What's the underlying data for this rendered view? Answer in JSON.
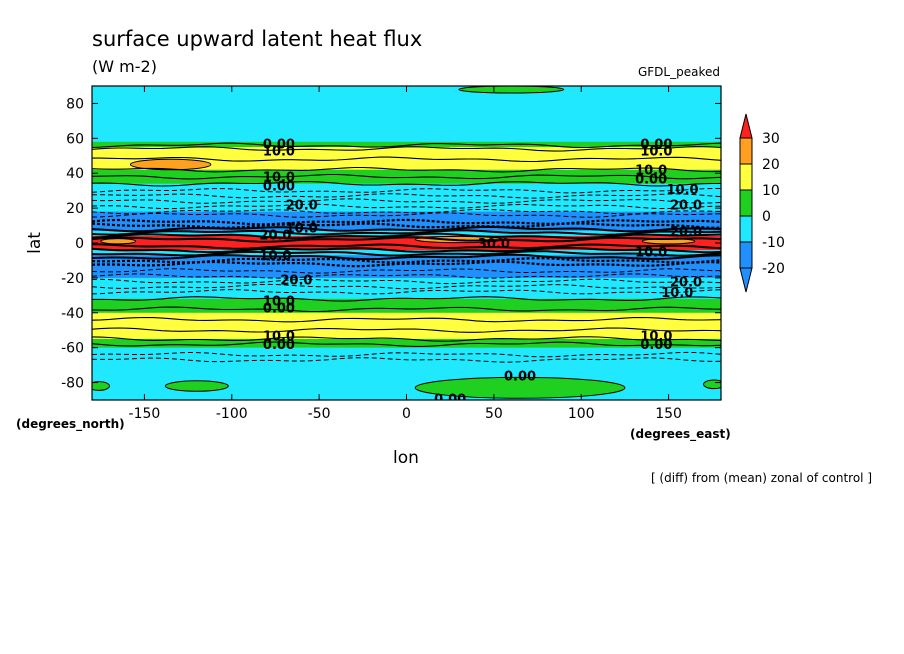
{
  "chart_data": {
    "type": "heatmap",
    "title": "surface upward latent heat flux",
    "units": "(W m-2)",
    "model_label": "GFDL_peaked",
    "xlabel": "lon",
    "ylabel": "lat",
    "x_units_label": "(degrees_east)",
    "y_units_label": "(degrees_north)",
    "footnote": "[ (diff) from (mean) zonal of control ]",
    "xlim": [
      -180,
      180
    ],
    "ylim": [
      -90,
      90
    ],
    "x_ticks": [
      -150,
      -100,
      -50,
      0,
      50,
      100,
      150
    ],
    "y_ticks": [
      80,
      60,
      40,
      20,
      0,
      -20,
      -40,
      -60,
      -80
    ],
    "x_tick_labels": [
      "-150",
      "-100",
      "-50",
      "0",
      "50",
      "100",
      "150"
    ],
    "y_tick_labels": [
      "80",
      "60",
      "40",
      "20",
      "0",
      "-20",
      "-40",
      "-60",
      "-80"
    ],
    "colorbar": {
      "levels": [
        30,
        20,
        10,
        0,
        -10,
        -20
      ],
      "level_labels": [
        "30",
        "20",
        "10",
        "0",
        "-10",
        "-20"
      ],
      "colors": [
        "#ff2020",
        "#ffa020",
        "#ffff40",
        "#20d020",
        "#20e8ff",
        "#2090ff"
      ],
      "top_color": "#ff2020",
      "bottom_color": "#2090ff"
    },
    "bands": [
      {
        "lat_min": 72,
        "lat_max": 90,
        "color": "#20e8ff"
      },
      {
        "lat_min": 58,
        "lat_max": 72,
        "color": "#20e8ff"
      },
      {
        "lat_min": 55,
        "lat_max": 58,
        "color": "#20d020"
      },
      {
        "lat_min": 42,
        "lat_max": 55,
        "color": "#ffff40"
      },
      {
        "lat_min": 34,
        "lat_max": 42,
        "color": "#20d020"
      },
      {
        "lat_min": 18,
        "lat_max": 34,
        "color": "#20e8ff"
      },
      {
        "lat_min": 7,
        "lat_max": 18,
        "color": "#2090ff"
      },
      {
        "lat_min": 4,
        "lat_max": 7,
        "color": "#20e8ff"
      },
      {
        "lat_min": -4,
        "lat_max": 4,
        "color": "#ff2020"
      },
      {
        "lat_min": -7,
        "lat_max": -4,
        "color": "#20e8ff"
      },
      {
        "lat_min": -20,
        "lat_max": -7,
        "color": "#2090ff"
      },
      {
        "lat_min": -32,
        "lat_max": -20,
        "color": "#20e8ff"
      },
      {
        "lat_min": -40,
        "lat_max": -32,
        "color": "#20d020"
      },
      {
        "lat_min": -55,
        "lat_max": -40,
        "color": "#ffff40"
      },
      {
        "lat_min": -60,
        "lat_max": -55,
        "color": "#20d020"
      },
      {
        "lat_min": -90,
        "lat_max": -60,
        "color": "#20e8ff"
      }
    ],
    "patches": [
      {
        "lon": -135,
        "lat": 45,
        "rx": 23,
        "ry": 3,
        "color": "#ffa020"
      },
      {
        "lon": -120,
        "lat": -82,
        "rx": 18,
        "ry": 3,
        "color": "#20d020"
      },
      {
        "lon": 65,
        "lat": -83,
        "rx": 60,
        "ry": 6,
        "color": "#20d020"
      },
      {
        "lon": -176,
        "lat": -82,
        "rx": 6,
        "ry": 2.5,
        "color": "#20d020"
      },
      {
        "lon": 176,
        "lat": -81,
        "rx": 6,
        "ry": 2.5,
        "color": "#20d020"
      },
      {
        "lon": 60,
        "lat": 88,
        "rx": 30,
        "ry": 2,
        "color": "#20d020"
      },
      {
        "lon": 30,
        "lat": 2,
        "rx": 25,
        "ry": 1.8,
        "color": "#ffa020"
      },
      {
        "lon": 150,
        "lat": 1,
        "rx": 15,
        "ry": 1.5,
        "color": "#ffa020"
      },
      {
        "lon": -165,
        "lat": 1,
        "rx": 10,
        "ry": 1.5,
        "color": "#ffa020"
      }
    ],
    "solid_contours": [
      56,
      54,
      48,
      42,
      38,
      34,
      8,
      6,
      4,
      2,
      -2,
      -4,
      -6,
      -8,
      -32,
      -38,
      -44,
      -50,
      -55,
      -58
    ],
    "dashed_contours": [
      30,
      27,
      24,
      21,
      18,
      16,
      12,
      10,
      -10,
      -12,
      -16,
      -19,
      -22,
      -25,
      -28,
      -64,
      -67
    ],
    "contour_labels": [
      {
        "text": "0.00",
        "lon": -73,
        "lat": 57
      },
      {
        "text": "10.0",
        "lon": -73,
        "lat": 53
      },
      {
        "text": "10.0",
        "lon": -73,
        "lat": 38
      },
      {
        "text": "0.00",
        "lon": -73,
        "lat": 33
      },
      {
        "text": "20.0",
        "lon": -60,
        "lat": 22
      },
      {
        "text": "0.00",
        "lon": 143,
        "lat": 57
      },
      {
        "text": "10.0",
        "lon": 143,
        "lat": 53
      },
      {
        "text": "10.0",
        "lon": 140,
        "lat": 42
      },
      {
        "text": "0.00",
        "lon": 140,
        "lat": 37
      },
      {
        "text": "10.0",
        "lon": 158,
        "lat": 31
      },
      {
        "text": "20.0",
        "lon": 160,
        "lat": 22
      },
      {
        "text": "10.0",
        "lon": -60,
        "lat": 9
      },
      {
        "text": "20.0",
        "lon": -75,
        "lat": 5
      },
      {
        "text": "10.0",
        "lon": -75,
        "lat": -7
      },
      {
        "text": "20.0",
        "lon": 160,
        "lat": 7
      },
      {
        "text": "10.0",
        "lon": 140,
        "lat": -5
      },
      {
        "text": "30.0",
        "lon": 50,
        "lat": 0
      },
      {
        "text": "20.0",
        "lon": -63,
        "lat": -21
      },
      {
        "text": "10.0",
        "lon": -73,
        "lat": -33
      },
      {
        "text": "0.00",
        "lon": -73,
        "lat": -37
      },
      {
        "text": "20.0",
        "lon": 160,
        "lat": -22
      },
      {
        "text": "10.0",
        "lon": 155,
        "lat": -28
      },
      {
        "text": "10.0",
        "lon": -73,
        "lat": -53
      },
      {
        "text": "0.00",
        "lon": -73,
        "lat": -58
      },
      {
        "text": "10.0",
        "lon": 143,
        "lat": -53
      },
      {
        "text": "0.00",
        "lon": 143,
        "lat": -58
      },
      {
        "text": "0.00",
        "lon": 65,
        "lat": -76
      },
      {
        "text": "0.00",
        "lon": 25,
        "lat": -89
      }
    ]
  }
}
